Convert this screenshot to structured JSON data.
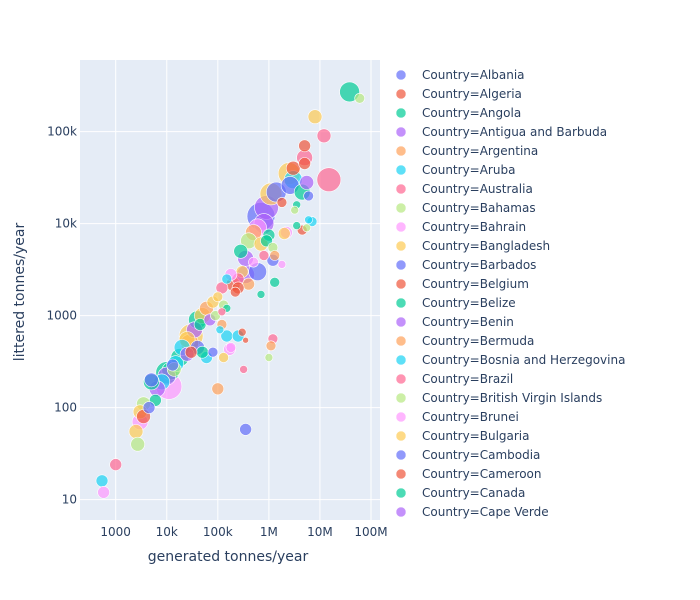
{
  "chart_data": {
    "type": "scatter",
    "title": "",
    "xlabel": "generated tonnes/year",
    "ylabel": "littered tonnes/year",
    "xscale": "log",
    "yscale": "log",
    "xlim": [
      200,
      150000000
    ],
    "ylim": [
      6,
      600000
    ],
    "grid": true,
    "legend_position": "right",
    "x_ticks": [
      {
        "value": 1000,
        "label": "1000"
      },
      {
        "value": 10000,
        "label": "10k"
      },
      {
        "value": 100000,
        "label": "100k"
      },
      {
        "value": 1000000,
        "label": "1M"
      },
      {
        "value": 10000000,
        "label": "10M"
      },
      {
        "value": 100000000,
        "label": "100M"
      }
    ],
    "y_ticks": [
      {
        "value": 10,
        "label": "10"
      },
      {
        "value": 100,
        "label": "100"
      },
      {
        "value": 1000,
        "label": "1000"
      },
      {
        "value": 10000,
        "label": "10k"
      },
      {
        "value": 100000,
        "label": "100k"
      }
    ],
    "series": [
      {
        "name": "Country=Albania",
        "color": "#636efa"
      },
      {
        "name": "Country=Algeria",
        "color": "#EF553B"
      },
      {
        "name": "Country=Angola",
        "color": "#00cc96"
      },
      {
        "name": "Country=Antigua and Barbuda",
        "color": "#ab63fa"
      },
      {
        "name": "Country=Argentina",
        "color": "#FFA15A"
      },
      {
        "name": "Country=Aruba",
        "color": "#19d3f3"
      },
      {
        "name": "Country=Australia",
        "color": "#FF6692"
      },
      {
        "name": "Country=Bahamas",
        "color": "#B6E880"
      },
      {
        "name": "Country=Bahrain",
        "color": "#FF97FF"
      },
      {
        "name": "Country=Bangladesh",
        "color": "#FECB52"
      },
      {
        "name": "Country=Barbados",
        "color": "#636efa"
      },
      {
        "name": "Country=Belgium",
        "color": "#EF553B"
      },
      {
        "name": "Country=Belize",
        "color": "#00cc96"
      },
      {
        "name": "Country=Benin",
        "color": "#ab63fa"
      },
      {
        "name": "Country=Bermuda",
        "color": "#FFA15A"
      },
      {
        "name": "Country=Bosnia and Herzegovina",
        "color": "#19d3f3"
      },
      {
        "name": "Country=Brazil",
        "color": "#FF6692"
      },
      {
        "name": "Country=British Virgin Islands",
        "color": "#B6E880"
      },
      {
        "name": "Country=Brunei",
        "color": "#FF97FF"
      },
      {
        "name": "Country=Bulgaria",
        "color": "#FECB52"
      },
      {
        "name": "Country=Cambodia",
        "color": "#636efa"
      },
      {
        "name": "Country=Cameroon",
        "color": "#EF553B"
      },
      {
        "name": "Country=Canada",
        "color": "#00cc96"
      },
      {
        "name": "Country=Cape Verde",
        "color": "#ab63fa"
      }
    ],
    "points": [
      [
        38000000,
        270000,
        10,
        2
      ],
      [
        60000000,
        230000,
        5,
        7
      ],
      [
        8000000,
        145000,
        7,
        9
      ],
      [
        12000000,
        90000,
        7,
        6
      ],
      [
        15000000,
        30000,
        12,
        6
      ],
      [
        5000000,
        70000,
        6,
        1
      ],
      [
        5000000,
        52000,
        8,
        6
      ],
      [
        5500000,
        28000,
        7,
        3
      ],
      [
        4500000,
        22000,
        8,
        2
      ],
      [
        3000000,
        30000,
        9,
        5
      ],
      [
        2500000,
        35000,
        11,
        9
      ],
      [
        3000000,
        40000,
        7,
        1
      ],
      [
        2600000,
        26000,
        9,
        10
      ],
      [
        6000000,
        20000,
        5,
        0
      ],
      [
        5000000,
        45000,
        6,
        11
      ],
      [
        3500000,
        16000,
        4,
        2
      ],
      [
        1800000,
        17000,
        5,
        1
      ],
      [
        3200000,
        14000,
        4,
        7
      ],
      [
        6000000,
        11000,
        4,
        5
      ],
      [
        5500000,
        9000,
        4,
        7
      ],
      [
        3500000,
        9500,
        4,
        2
      ],
      [
        2200000,
        8000,
        6,
        8
      ],
      [
        1400000,
        22000,
        10,
        0
      ],
      [
        1100000,
        21000,
        11,
        9
      ],
      [
        900000,
        15000,
        12,
        3
      ],
      [
        700000,
        12000,
        14,
        10
      ],
      [
        800000,
        10000,
        10,
        3
      ],
      [
        600000,
        9000,
        9,
        8
      ],
      [
        500000,
        8000,
        8,
        4
      ],
      [
        1000000,
        7500,
        6,
        2
      ],
      [
        900000,
        6500,
        6,
        12
      ],
      [
        700000,
        6000,
        7,
        9
      ],
      [
        400000,
        6500,
        8,
        7
      ],
      [
        1200000,
        5500,
        5,
        7
      ],
      [
        1300000,
        4500,
        5,
        4
      ],
      [
        1200000,
        4000,
        6,
        10
      ],
      [
        800000,
        4500,
        5,
        6
      ],
      [
        500000,
        3800,
        5,
        8
      ],
      [
        350000,
        4200,
        8,
        3
      ],
      [
        300000,
        3000,
        6,
        9
      ],
      [
        250000,
        2500,
        6,
        6
      ],
      [
        350000,
        2800,
        9,
        13
      ],
      [
        400000,
        2200,
        6,
        4
      ],
      [
        600000,
        3000,
        9,
        20
      ],
      [
        250000,
        2000,
        6,
        11
      ],
      [
        200000,
        2200,
        7,
        1
      ],
      [
        150000,
        2500,
        5,
        5
      ],
      [
        180000,
        2800,
        6,
        18
      ],
      [
        220000,
        1800,
        5,
        11
      ],
      [
        120000,
        2000,
        6,
        16
      ],
      [
        100000,
        1600,
        5,
        19
      ],
      [
        130000,
        1300,
        5,
        7
      ],
      [
        150000,
        1200,
        4,
        2
      ],
      [
        80000,
        1400,
        6,
        9
      ],
      [
        60000,
        1200,
        7,
        4
      ],
      [
        50000,
        1000,
        8,
        19
      ],
      [
        40000,
        900,
        9,
        12
      ],
      [
        35000,
        700,
        8,
        3
      ],
      [
        30000,
        600,
        12,
        9
      ],
      [
        28000,
        500,
        9,
        4
      ],
      [
        25000,
        550,
        8,
        19
      ],
      [
        45000,
        800,
        6,
        2
      ],
      [
        70000,
        900,
        6,
        13
      ],
      [
        90000,
        1000,
        5,
        7
      ],
      [
        120000,
        800,
        5,
        14
      ],
      [
        110000,
        700,
        4,
        5
      ],
      [
        150000,
        600,
        6,
        5
      ],
      [
        180000,
        450,
        5,
        8
      ],
      [
        130000,
        350,
        5,
        19
      ],
      [
        80000,
        400,
        5,
        10
      ],
      [
        60000,
        350,
        6,
        15
      ],
      [
        50000,
        400,
        6,
        2
      ],
      [
        40000,
        450,
        7,
        20
      ],
      [
        30000,
        400,
        6,
        1
      ],
      [
        25000,
        380,
        7,
        13
      ],
      [
        20000,
        450,
        8,
        15
      ],
      [
        18000,
        350,
        9,
        12
      ],
      [
        15000,
        300,
        8,
        5
      ],
      [
        12000,
        250,
        9,
        12
      ],
      [
        10000,
        220,
        9,
        3
      ],
      [
        11000,
        170,
        13,
        18
      ],
      [
        10000,
        240,
        11,
        2
      ],
      [
        14000,
        260,
        7,
        7
      ],
      [
        13000,
        290,
        6,
        0
      ],
      [
        8000,
        190,
        8,
        5
      ],
      [
        6500,
        160,
        8,
        3
      ],
      [
        5000,
        200,
        7,
        0
      ],
      [
        5000,
        190,
        8,
        2
      ],
      [
        6000,
        120,
        6,
        12
      ],
      [
        4500,
        100,
        6,
        10
      ],
      [
        3500,
        110,
        7,
        17
      ],
      [
        3000,
        90,
        7,
        19
      ],
      [
        3500,
        80,
        7,
        11
      ],
      [
        3000,
        70,
        8,
        18
      ],
      [
        2500,
        55,
        7,
        9
      ],
      [
        2700,
        40,
        7,
        17
      ],
      [
        1000,
        24,
        6,
        6
      ],
      [
        540,
        16,
        6,
        5
      ],
      [
        580,
        12,
        6,
        18
      ],
      [
        100000,
        160,
        6,
        4
      ],
      [
        350000,
        58,
        6,
        0
      ],
      [
        250000,
        600,
        6,
        5
      ],
      [
        170000,
        430,
        6,
        18
      ],
      [
        1200000,
        560,
        5,
        6
      ],
      [
        1100000,
        470,
        5,
        4
      ],
      [
        1000000,
        350,
        4,
        7
      ],
      [
        320000,
        260,
        4,
        6
      ],
      [
        300000,
        660,
        4,
        21
      ],
      [
        350000,
        540,
        3,
        11
      ],
      [
        120000,
        1100,
        4,
        6
      ],
      [
        700000,
        1700,
        4,
        12
      ],
      [
        1300000,
        2300,
        5,
        22
      ],
      [
        280000,
        5000,
        7,
        12
      ],
      [
        1800000,
        3600,
        4,
        18
      ],
      [
        2000000,
        7800,
        6,
        9
      ],
      [
        4500000,
        8500,
        5,
        1
      ],
      [
        7000000,
        10500,
        5,
        5
      ]
    ]
  }
}
